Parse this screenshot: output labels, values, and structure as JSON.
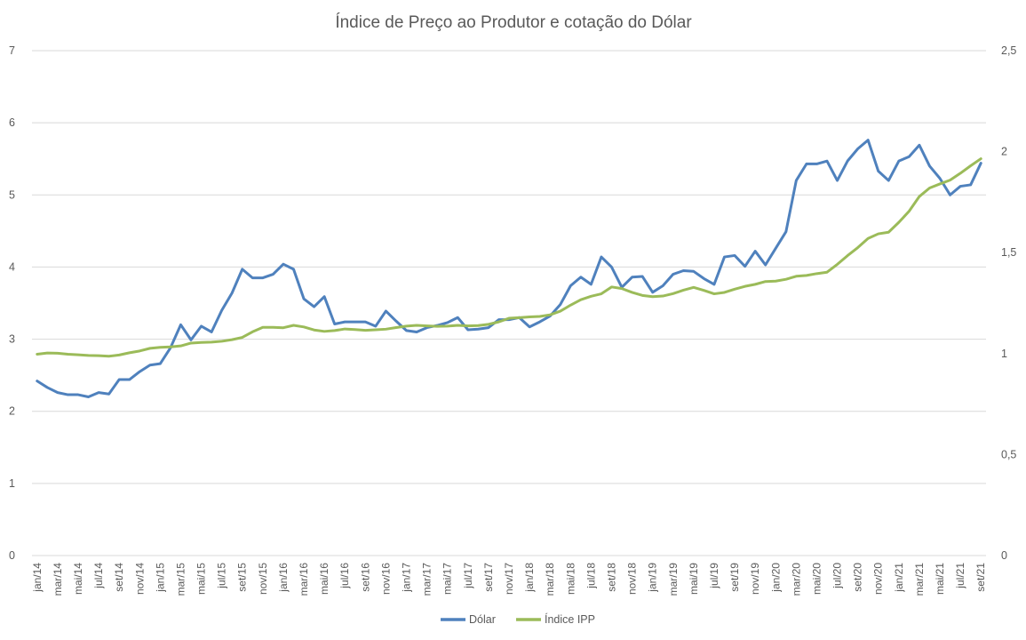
{
  "chart_data": {
    "type": "line",
    "title": "Índice de Preço ao Produtor e cotação do Dólar",
    "y_left": {
      "min": 0,
      "max": 7,
      "ticks": [
        "0",
        "1",
        "2",
        "3",
        "4",
        "5",
        "6",
        "7"
      ]
    },
    "y_right": {
      "min": 0,
      "max": 2.5,
      "ticks": [
        "0",
        "0,5",
        "1",
        "1,5",
        "2",
        "2,5"
      ]
    },
    "x_labels": [
      "jan/14",
      "mar/14",
      "mai/14",
      "jul/14",
      "set/14",
      "nov/14",
      "jan/15",
      "mar/15",
      "mai/15",
      "jul/15",
      "set/15",
      "nov/15",
      "jan/16",
      "mar/16",
      "mai/16",
      "jul/16",
      "set/16",
      "nov/16",
      "jan/17",
      "mar/17",
      "mai/17",
      "jul/17",
      "set/17",
      "nov/17",
      "jan/18",
      "mar/18",
      "mai/18",
      "jul/18",
      "set/18",
      "nov/18",
      "jan/19",
      "mar/19",
      "mai/19",
      "jul/19",
      "set/19",
      "nov/19",
      "jan/20",
      "mar/20",
      "mai/20",
      "jul/20",
      "set/20",
      "nov/20",
      "jan/21",
      "mar/21",
      "mai/21",
      "jul/21",
      "set/21"
    ],
    "grid": true,
    "legend_position": "bottom",
    "series": [
      {
        "name": "Dólar",
        "axis": "left",
        "color": "#4f81bd",
        "values": [
          2.42,
          2.33,
          2.26,
          2.23,
          2.23,
          2.2,
          2.26,
          2.24,
          2.44,
          2.44,
          2.55,
          2.64,
          2.66,
          2.88,
          3.2,
          2.99,
          3.18,
          3.1,
          3.4,
          3.64,
          3.97,
          3.85,
          3.85,
          3.9,
          4.04,
          3.97,
          3.56,
          3.45,
          3.59,
          3.21,
          3.24,
          3.24,
          3.24,
          3.18,
          3.39,
          3.25,
          3.12,
          3.1,
          3.16,
          3.19,
          3.23,
          3.3,
          3.13,
          3.14,
          3.16,
          3.27,
          3.27,
          3.3,
          3.17,
          3.24,
          3.32,
          3.48,
          3.74,
          3.86,
          3.76,
          4.14,
          4.0,
          3.72,
          3.86,
          3.87,
          3.65,
          3.74,
          3.9,
          3.95,
          3.94,
          3.84,
          3.76,
          4.14,
          4.16,
          4.01,
          4.22,
          4.03,
          4.26,
          4.49,
          5.2,
          5.43,
          5.43,
          5.47,
          5.2,
          5.47,
          5.64,
          5.76,
          5.33,
          5.2,
          5.47,
          5.53,
          5.69,
          5.4,
          5.23,
          5.0,
          5.12,
          5.14,
          5.44
        ]
      },
      {
        "name": "Índice IPP",
        "axis": "right",
        "color": "#9bbb59",
        "values": [
          0.997,
          1.003,
          1.002,
          0.997,
          0.994,
          0.991,
          0.99,
          0.987,
          0.993,
          1.004,
          1.013,
          1.026,
          1.031,
          1.033,
          1.038,
          1.052,
          1.055,
          1.057,
          1.061,
          1.069,
          1.08,
          1.108,
          1.13,
          1.13,
          1.128,
          1.14,
          1.132,
          1.117,
          1.11,
          1.114,
          1.122,
          1.119,
          1.115,
          1.118,
          1.121,
          1.129,
          1.136,
          1.14,
          1.137,
          1.135,
          1.136,
          1.14,
          1.137,
          1.139,
          1.145,
          1.157,
          1.175,
          1.178,
          1.182,
          1.184,
          1.192,
          1.21,
          1.24,
          1.267,
          1.284,
          1.296,
          1.33,
          1.322,
          1.303,
          1.288,
          1.282,
          1.285,
          1.297,
          1.314,
          1.328,
          1.313,
          1.296,
          1.303,
          1.319,
          1.333,
          1.343,
          1.357,
          1.359,
          1.368,
          1.383,
          1.387,
          1.396,
          1.403,
          1.442,
          1.485,
          1.525,
          1.57,
          1.593,
          1.601,
          1.65,
          1.705,
          1.778,
          1.82,
          1.84,
          1.859,
          1.893,
          1.93,
          1.965
        ]
      }
    ]
  }
}
